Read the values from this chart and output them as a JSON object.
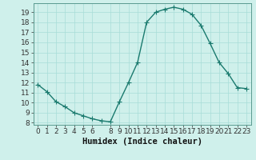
{
  "x": [
    0,
    1,
    2,
    3,
    4,
    5,
    6,
    7,
    8,
    9,
    10,
    11,
    12,
    13,
    14,
    15,
    16,
    17,
    18,
    19,
    20,
    21,
    22,
    23
  ],
  "y": [
    11.8,
    11.1,
    10.1,
    9.6,
    9.0,
    8.7,
    8.4,
    8.2,
    8.1,
    10.1,
    12.0,
    14.0,
    18.0,
    19.0,
    19.3,
    19.5,
    19.3,
    18.8,
    17.7,
    15.9,
    14.0,
    12.9,
    11.5,
    11.4
  ],
  "line_color": "#1a7a6e",
  "marker": "+",
  "marker_size": 4,
  "marker_linewidth": 0.8,
  "line_width": 1.0,
  "bg_color": "#cff0eb",
  "grid_color": "#a8ddd7",
  "xlabel": "Humidex (Indice chaleur)",
  "xlim": [
    -0.5,
    23.5
  ],
  "ylim": [
    7.8,
    19.9
  ],
  "yticks": [
    8,
    9,
    10,
    11,
    12,
    13,
    14,
    15,
    16,
    17,
    18,
    19
  ],
  "xticks": [
    0,
    1,
    2,
    3,
    4,
    5,
    6,
    8,
    9,
    10,
    11,
    12,
    13,
    14,
    15,
    16,
    17,
    18,
    19,
    20,
    21,
    22,
    23
  ],
  "tick_labelsize": 6.5,
  "xlabel_fontsize": 7.5,
  "spine_color": "#5a9a90"
}
